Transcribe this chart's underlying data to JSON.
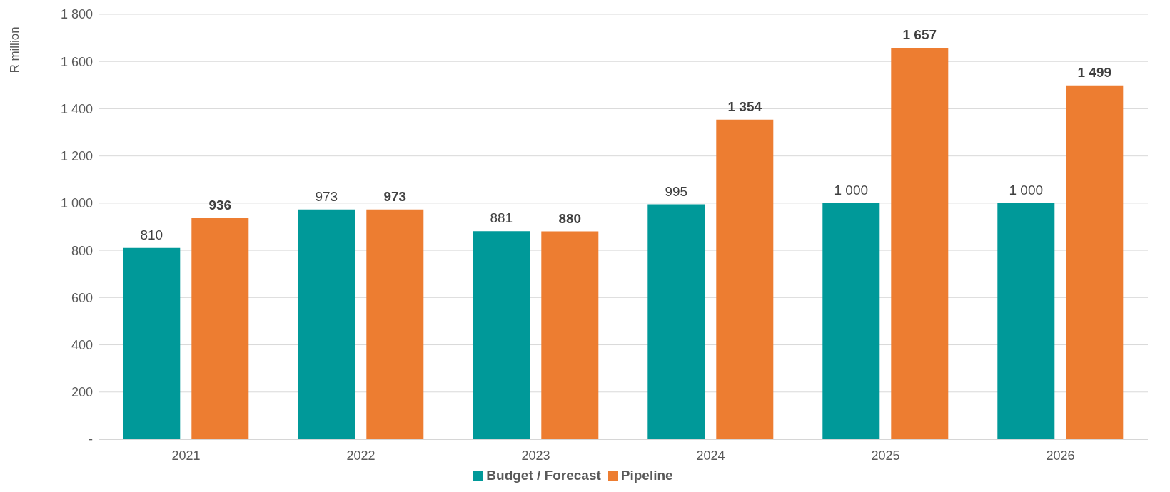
{
  "chart_data": {
    "type": "bar",
    "ylabel": "R million",
    "categories": [
      "2021",
      "2022",
      "2023",
      "2024",
      "2025",
      "2026"
    ],
    "series": [
      {
        "name": "Budget / Forecast",
        "color": "#009999",
        "values": [
          810,
          973,
          881,
          995,
          1000,
          1000
        ],
        "value_labels": [
          "810",
          "973",
          "881",
          "995",
          "1 000",
          "1 000"
        ]
      },
      {
        "name": "Pipeline",
        "color": "#ed7d31",
        "values": [
          936,
          973,
          880,
          1354,
          1657,
          1499
        ],
        "value_labels": [
          "936",
          "973",
          "880",
          "1 354",
          "1 657",
          "1 499"
        ]
      }
    ],
    "ylim": [
      0,
      1800
    ],
    "yticks": [
      {
        "value": 0,
        "label": "-"
      },
      {
        "value": 200,
        "label": "200"
      },
      {
        "value": 400,
        "label": "400"
      },
      {
        "value": 600,
        "label": "600"
      },
      {
        "value": 800,
        "label": "800"
      },
      {
        "value": 1000,
        "label": "1 000"
      },
      {
        "value": 1200,
        "label": "1 200"
      },
      {
        "value": 1400,
        "label": "1 400"
      },
      {
        "value": 1600,
        "label": "1 600"
      },
      {
        "value": 1800,
        "label": "1 800"
      }
    ],
    "grid": "y",
    "legend": "bottom"
  }
}
